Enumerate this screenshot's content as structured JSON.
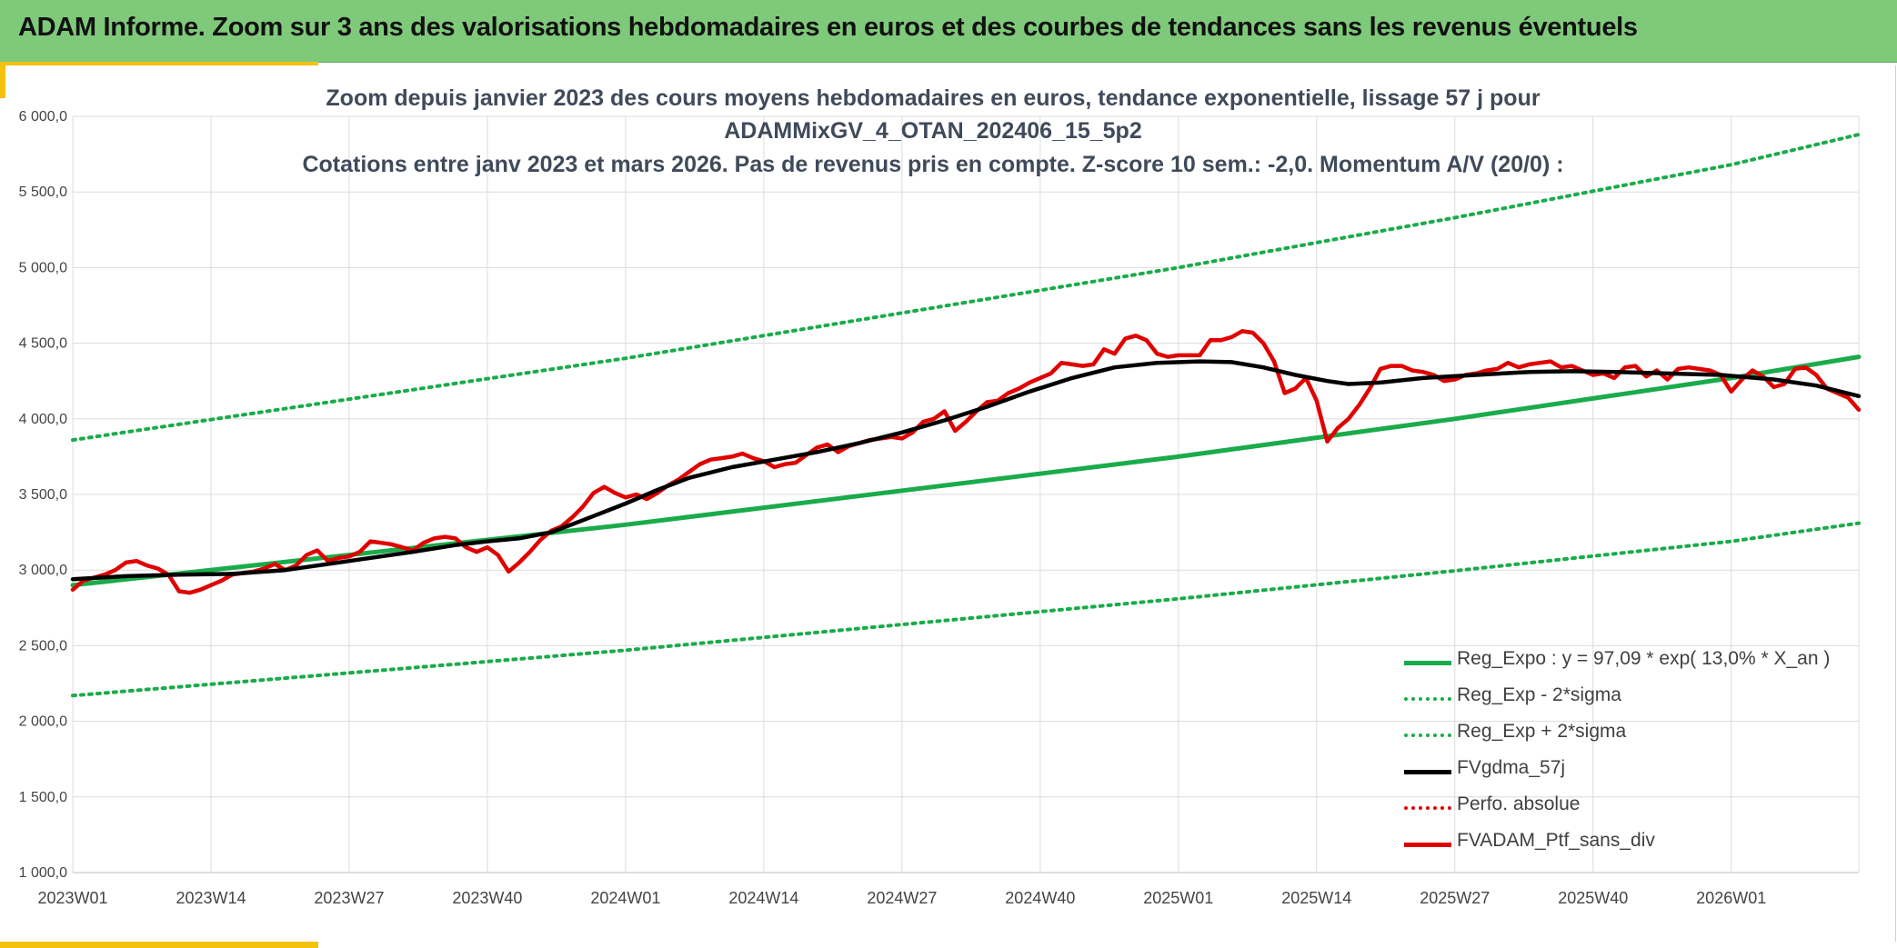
{
  "banner": {
    "title": "ADAM Informe. Zoom sur 3 ans des valorisations hebdomadaires en euros et des courbes de tendances sans les revenus éventuels"
  },
  "colors": {
    "banner_bg": "#7fc97a",
    "accent": "#f4c20d",
    "regression": "#1aab4b",
    "sigma_bands": "#1aab4b",
    "moving_average": "#000000",
    "portfolio": "#e00000",
    "perfo": "#e00000",
    "grid": "#dcdcdc"
  },
  "chart_data": {
    "type": "line",
    "title_lines": [
      "Zoom depuis janvier 2023 des cours moyens hebdomadaires en euros, tendance exponentielle, lissage 57 j pour",
      "ADAMMixGV_4_OTAN_202406_15_5p2",
      "Cotations entre janv 2023 et mars 2026. Pas de revenus pris en compte. Z-score 10 sem.: -2,0. Momentum A/V (20/0) :"
    ],
    "y_range": [
      1000,
      6000
    ],
    "y_ticks": [
      "1 000,0",
      "1 500,0",
      "2 000,0",
      "2 500,0",
      "3 000,0",
      "3 500,0",
      "4 000,0",
      "4 500,0",
      "5 000,0",
      "5 500,0",
      "6 000,0"
    ],
    "x_range": [
      0,
      168
    ],
    "x_ticks": [
      {
        "label": "2023W01",
        "week": 0
      },
      {
        "label": "2023W14",
        "week": 13
      },
      {
        "label": "2023W27",
        "week": 26
      },
      {
        "label": "2023W40",
        "week": 39
      },
      {
        "label": "2024W01",
        "week": 52
      },
      {
        "label": "2024W14",
        "week": 65
      },
      {
        "label": "2024W27",
        "week": 78
      },
      {
        "label": "2024W40",
        "week": 91
      },
      {
        "label": "2025W01",
        "week": 104
      },
      {
        "label": "2025W14",
        "week": 117
      },
      {
        "label": "2025W27",
        "week": 130
      },
      {
        "label": "2025W40",
        "week": 143
      },
      {
        "label": "2026W01",
        "week": 156
      }
    ],
    "series": [
      {
        "name": "Reg_Expo : y = 97,09 * exp( 13,0% *  X_an )",
        "style": "solid-green",
        "points": [
          [
            0,
            2900
          ],
          [
            52,
            3300
          ],
          [
            104,
            3750
          ],
          [
            130,
            4000
          ],
          [
            156,
            4270
          ],
          [
            168,
            4410
          ]
        ]
      },
      {
        "name": "Reg_Exp - 2*sigma",
        "style": "dotted-green",
        "points": [
          [
            0,
            2170
          ],
          [
            52,
            2470
          ],
          [
            104,
            2810
          ],
          [
            130,
            2995
          ],
          [
            156,
            3190
          ],
          [
            168,
            3310
          ]
        ]
      },
      {
        "name": "Reg_Exp + 2*sigma",
        "style": "dotted-green",
        "points": [
          [
            0,
            3860
          ],
          [
            52,
            4400
          ],
          [
            104,
            5000
          ],
          [
            130,
            5330
          ],
          [
            156,
            5680
          ],
          [
            168,
            5880
          ]
        ]
      },
      {
        "name": "FVgdma_57j",
        "style": "solid-black",
        "points": [
          [
            0,
            2940
          ],
          [
            5,
            2960
          ],
          [
            10,
            2970
          ],
          [
            15,
            2975
          ],
          [
            20,
            3000
          ],
          [
            26,
            3060
          ],
          [
            32,
            3120
          ],
          [
            36,
            3165
          ],
          [
            39,
            3190
          ],
          [
            42,
            3210
          ],
          [
            45,
            3250
          ],
          [
            48,
            3330
          ],
          [
            52,
            3440
          ],
          [
            55,
            3530
          ],
          [
            58,
            3610
          ],
          [
            62,
            3680
          ],
          [
            66,
            3730
          ],
          [
            70,
            3780
          ],
          [
            74,
            3840
          ],
          [
            78,
            3910
          ],
          [
            82,
            3990
          ],
          [
            86,
            4080
          ],
          [
            90,
            4180
          ],
          [
            94,
            4270
          ],
          [
            98,
            4340
          ],
          [
            102,
            4370
          ],
          [
            106,
            4380
          ],
          [
            109,
            4375
          ],
          [
            112,
            4340
          ],
          [
            115,
            4290
          ],
          [
            118,
            4250
          ],
          [
            120,
            4230
          ],
          [
            123,
            4240
          ],
          [
            127,
            4270
          ],
          [
            132,
            4290
          ],
          [
            137,
            4310
          ],
          [
            141,
            4315
          ],
          [
            145,
            4310
          ],
          [
            150,
            4300
          ],
          [
            155,
            4290
          ],
          [
            160,
            4260
          ],
          [
            164,
            4220
          ],
          [
            168,
            4150
          ]
        ]
      },
      {
        "name": "Perfo. absolue",
        "style": "dotted-red",
        "points": []
      },
      {
        "name": "FVADAM_Ptf_sans_div",
        "style": "solid-red",
        "points": [
          [
            0,
            2870
          ],
          [
            1,
            2930
          ],
          [
            2,
            2950
          ],
          [
            3,
            2970
          ],
          [
            4,
            3000
          ],
          [
            5,
            3050
          ],
          [
            6,
            3060
          ],
          [
            7,
            3030
          ],
          [
            8,
            3010
          ],
          [
            9,
            2970
          ],
          [
            10,
            2860
          ],
          [
            11,
            2850
          ],
          [
            12,
            2870
          ],
          [
            13,
            2900
          ],
          [
            14,
            2930
          ],
          [
            15,
            2970
          ],
          [
            16,
            2980
          ],
          [
            17,
            2990
          ],
          [
            18,
            3010
          ],
          [
            19,
            3040
          ],
          [
            20,
            3000
          ],
          [
            21,
            3030
          ],
          [
            22,
            3100
          ],
          [
            23,
            3130
          ],
          [
            24,
            3060
          ],
          [
            25,
            3080
          ],
          [
            26,
            3090
          ],
          [
            27,
            3120
          ],
          [
            28,
            3190
          ],
          [
            29,
            3180
          ],
          [
            30,
            3170
          ],
          [
            31,
            3150
          ],
          [
            32,
            3130
          ],
          [
            33,
            3180
          ],
          [
            34,
            3210
          ],
          [
            35,
            3220
          ],
          [
            36,
            3210
          ],
          [
            37,
            3150
          ],
          [
            38,
            3120
          ],
          [
            39,
            3150
          ],
          [
            40,
            3100
          ],
          [
            41,
            2990
          ],
          [
            42,
            3050
          ],
          [
            43,
            3120
          ],
          [
            44,
            3200
          ],
          [
            45,
            3260
          ],
          [
            46,
            3290
          ],
          [
            47,
            3350
          ],
          [
            48,
            3420
          ],
          [
            49,
            3510
          ],
          [
            50,
            3550
          ],
          [
            51,
            3510
          ],
          [
            52,
            3480
          ],
          [
            53,
            3500
          ],
          [
            54,
            3470
          ],
          [
            55,
            3510
          ],
          [
            56,
            3560
          ],
          [
            57,
            3600
          ],
          [
            58,
            3650
          ],
          [
            59,
            3700
          ],
          [
            60,
            3730
          ],
          [
            61,
            3740
          ],
          [
            62,
            3750
          ],
          [
            63,
            3770
          ],
          [
            64,
            3740
          ],
          [
            65,
            3720
          ],
          [
            66,
            3680
          ],
          [
            67,
            3700
          ],
          [
            68,
            3710
          ],
          [
            69,
            3760
          ],
          [
            70,
            3810
          ],
          [
            71,
            3830
          ],
          [
            72,
            3780
          ],
          [
            73,
            3820
          ],
          [
            74,
            3840
          ],
          [
            75,
            3860
          ],
          [
            76,
            3870
          ],
          [
            77,
            3880
          ],
          [
            78,
            3870
          ],
          [
            79,
            3910
          ],
          [
            80,
            3980
          ],
          [
            81,
            4000
          ],
          [
            82,
            4050
          ],
          [
            83,
            3920
          ],
          [
            84,
            3980
          ],
          [
            85,
            4050
          ],
          [
            86,
            4110
          ],
          [
            87,
            4120
          ],
          [
            88,
            4170
          ],
          [
            89,
            4200
          ],
          [
            90,
            4240
          ],
          [
            91,
            4270
          ],
          [
            92,
            4300
          ],
          [
            93,
            4370
          ],
          [
            94,
            4360
          ],
          [
            95,
            4350
          ],
          [
            96,
            4360
          ],
          [
            97,
            4460
          ],
          [
            98,
            4430
          ],
          [
            99,
            4530
          ],
          [
            100,
            4550
          ],
          [
            101,
            4520
          ],
          [
            102,
            4430
          ],
          [
            103,
            4410
          ],
          [
            104,
            4420
          ],
          [
            105,
            4420
          ],
          [
            106,
            4420
          ],
          [
            107,
            4520
          ],
          [
            108,
            4520
          ],
          [
            109,
            4540
          ],
          [
            110,
            4580
          ],
          [
            111,
            4570
          ],
          [
            112,
            4500
          ],
          [
            113,
            4380
          ],
          [
            114,
            4170
          ],
          [
            115,
            4200
          ],
          [
            116,
            4270
          ],
          [
            117,
            4120
          ],
          [
            118,
            3850
          ],
          [
            119,
            3940
          ],
          [
            120,
            4000
          ],
          [
            121,
            4090
          ],
          [
            122,
            4200
          ],
          [
            123,
            4330
          ],
          [
            124,
            4350
          ],
          [
            125,
            4350
          ],
          [
            126,
            4320
          ],
          [
            127,
            4310
          ],
          [
            128,
            4290
          ],
          [
            129,
            4250
          ],
          [
            130,
            4260
          ],
          [
            131,
            4290
          ],
          [
            132,
            4300
          ],
          [
            133,
            4320
          ],
          [
            134,
            4330
          ],
          [
            135,
            4370
          ],
          [
            136,
            4340
          ],
          [
            137,
            4360
          ],
          [
            138,
            4370
          ],
          [
            139,
            4380
          ],
          [
            140,
            4340
          ],
          [
            141,
            4350
          ],
          [
            142,
            4320
          ],
          [
            143,
            4290
          ],
          [
            144,
            4300
          ],
          [
            145,
            4270
          ],
          [
            146,
            4340
          ],
          [
            147,
            4350
          ],
          [
            148,
            4280
          ],
          [
            149,
            4320
          ],
          [
            150,
            4260
          ],
          [
            151,
            4330
          ],
          [
            152,
            4340
          ],
          [
            153,
            4330
          ],
          [
            154,
            4320
          ],
          [
            155,
            4290
          ],
          [
            156,
            4180
          ],
          [
            157,
            4260
          ],
          [
            158,
            4320
          ],
          [
            159,
            4280
          ],
          [
            160,
            4210
          ],
          [
            161,
            4230
          ],
          [
            162,
            4330
          ],
          [
            163,
            4340
          ],
          [
            164,
            4290
          ],
          [
            165,
            4200
          ],
          [
            166,
            4170
          ],
          [
            167,
            4140
          ],
          [
            168,
            4060
          ]
        ]
      }
    ],
    "legend": [
      {
        "label": "Reg_Expo : y = 97,09 * exp( 13,0% *  X_an )",
        "style": "solid-green"
      },
      {
        "label": "Reg_Exp - 2*sigma",
        "style": "dotted-green"
      },
      {
        "label": "Reg_Exp + 2*sigma",
        "style": "dotted-green"
      },
      {
        "label": "FVgdma_57j",
        "style": "solid-black"
      },
      {
        "label": "Perfo. absolue",
        "style": "dotted-red"
      },
      {
        "label": "FVADAM_Ptf_sans_div",
        "style": "solid-red"
      }
    ],
    "legend_position": "bottom-right",
    "grid": true
  }
}
